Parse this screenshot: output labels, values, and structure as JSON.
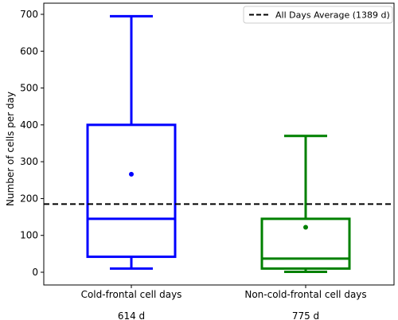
{
  "chart_data": {
    "type": "box",
    "title": "",
    "xlabel": "",
    "ylabel": "Number of cells per day",
    "ylim": [
      -15,
      720
    ],
    "yticks": [
      0,
      100,
      200,
      300,
      400,
      500,
      600,
      700
    ],
    "grid": false,
    "legend_position": "top-right",
    "reference_line": {
      "label": "All Days Average (1389 d)",
      "value": 185,
      "style": "dashed",
      "color": "#000000"
    },
    "categories": [
      "Cold-frontal cell days",
      "Non-cold-frontal cell days"
    ],
    "counts": [
      "614 d",
      "775 d"
    ],
    "series": [
      {
        "color": "#0000ff",
        "whisker_low": 10,
        "q1": 42,
        "median": 145,
        "q3": 400,
        "whisker_high": 695,
        "mean": 266
      },
      {
        "color": "#008000",
        "whisker_low": 1,
        "q1": 10,
        "median": 37,
        "q3": 145,
        "whisker_high": 370,
        "mean": 122
      }
    ]
  }
}
